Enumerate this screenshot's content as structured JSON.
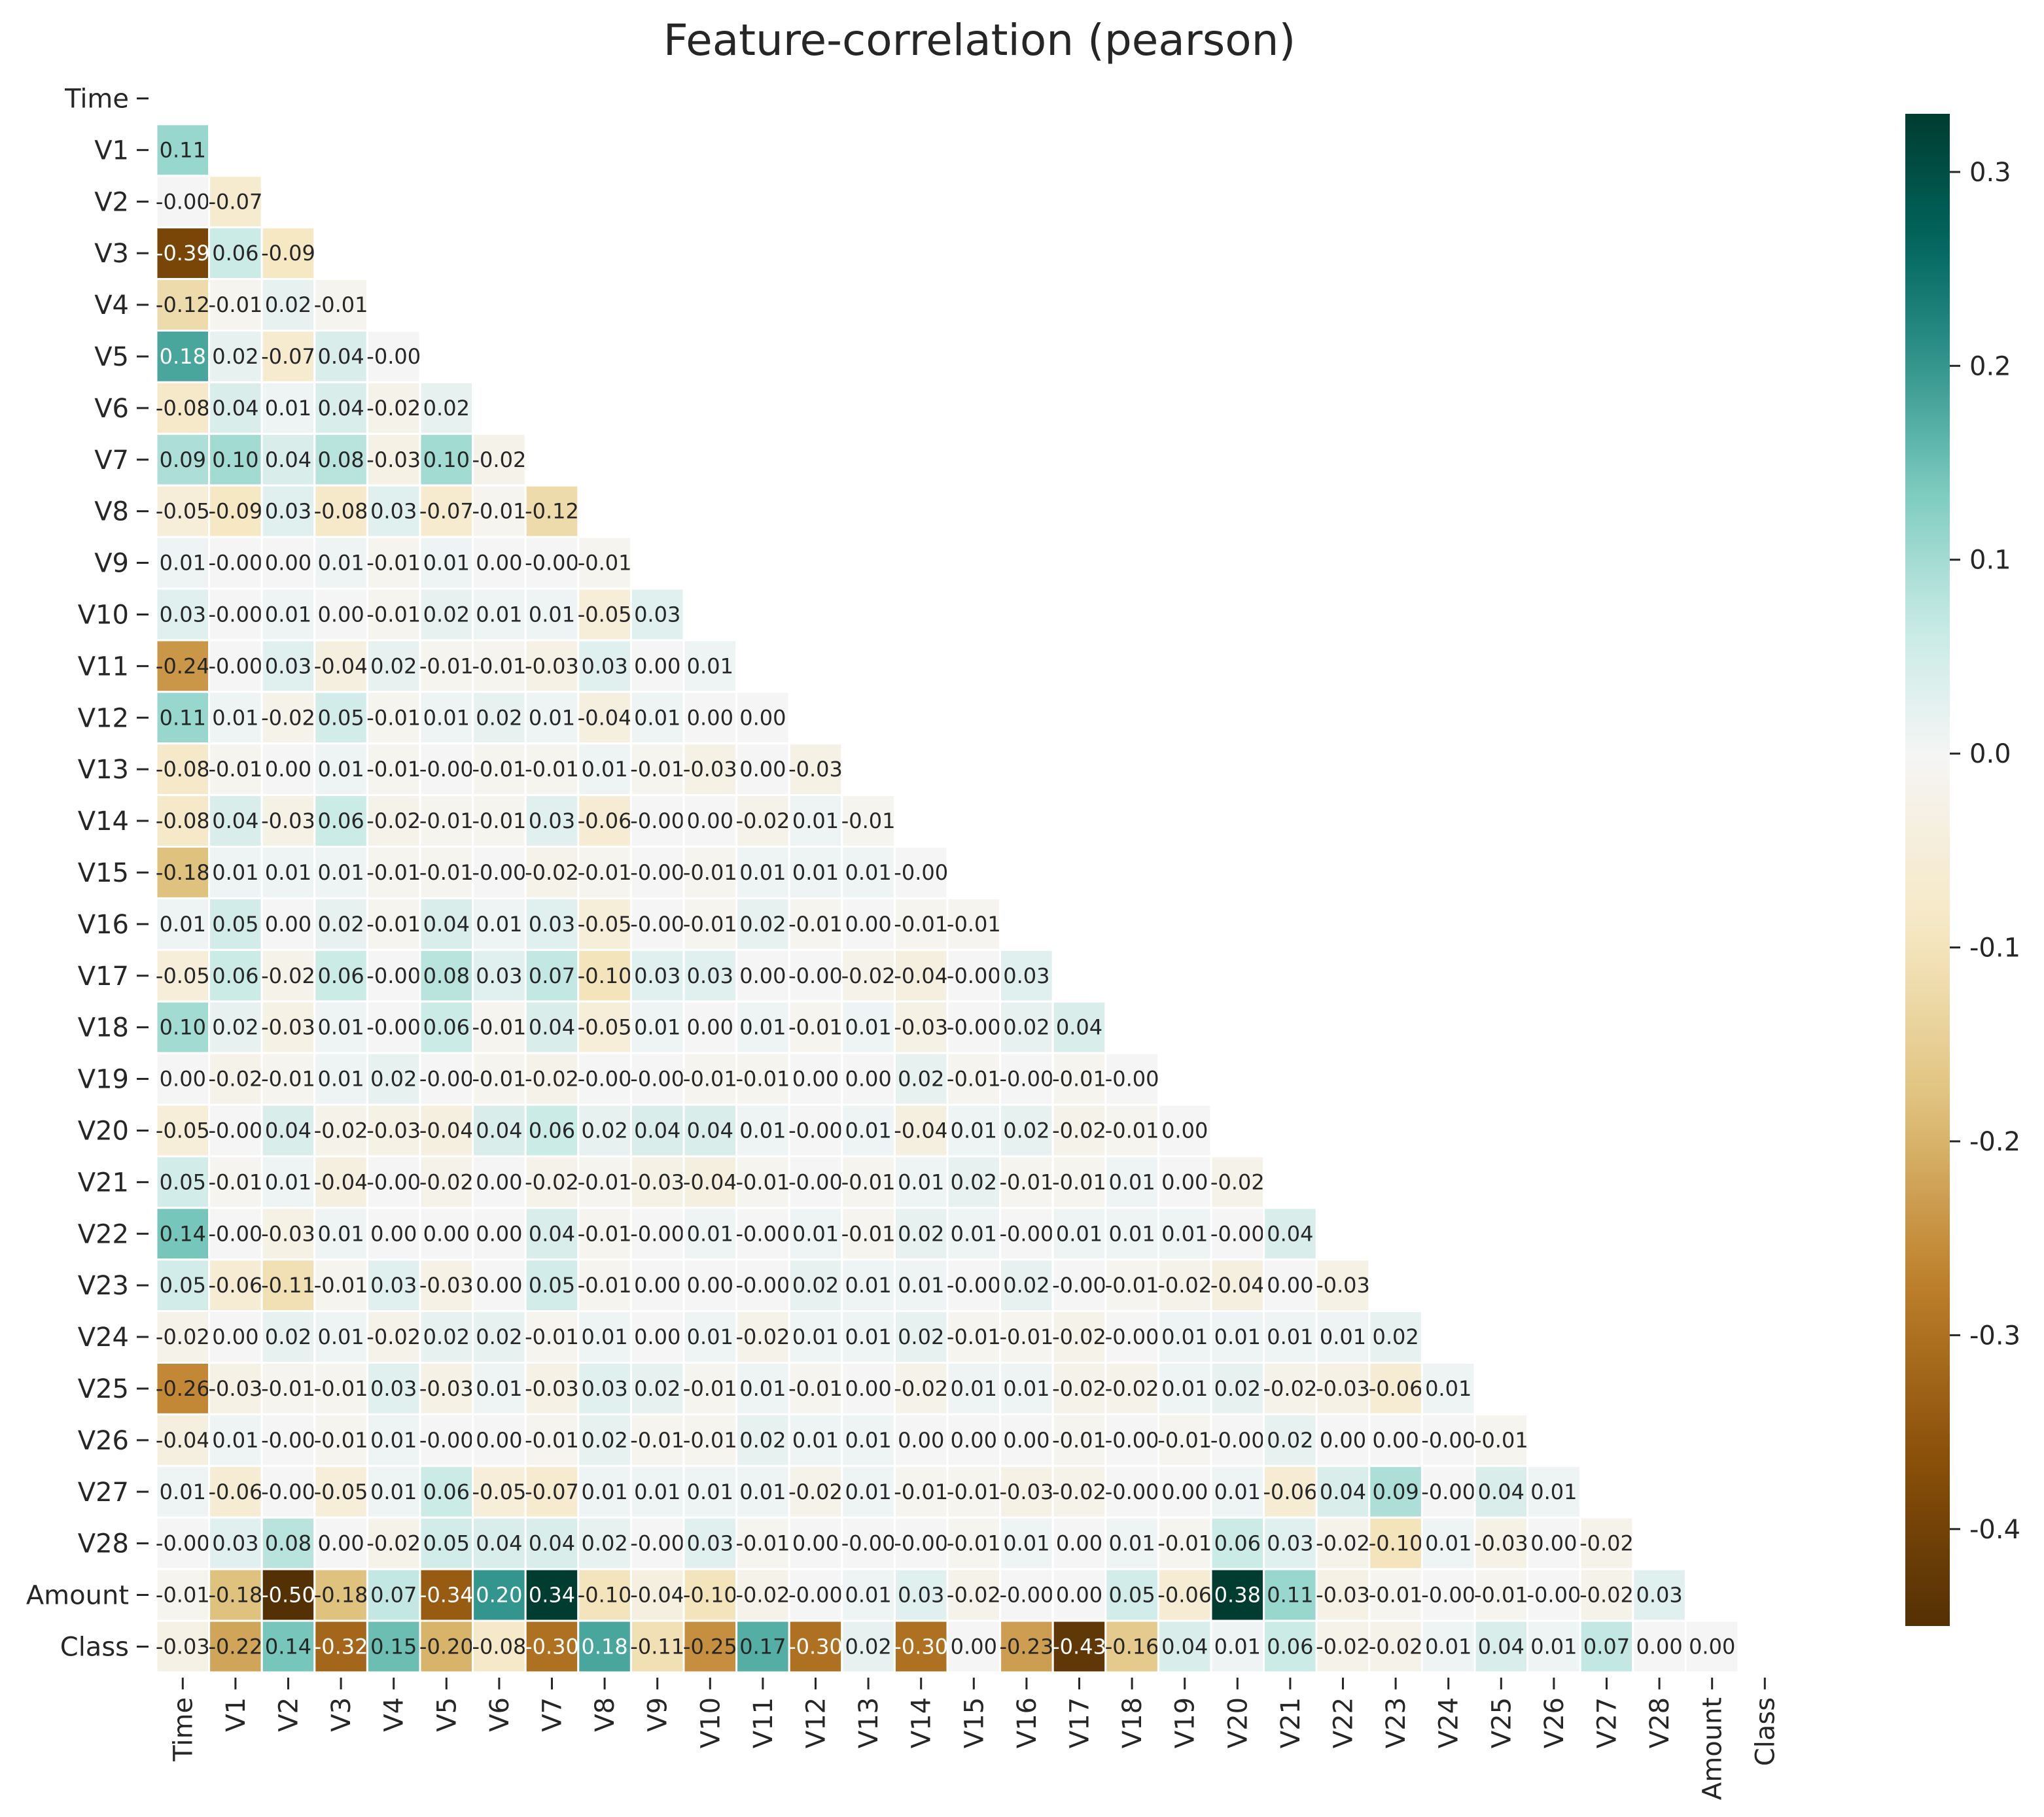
{
  "chart_data": {
    "type": "heatmap",
    "title": "Feature-correlation (pearson)",
    "mask": "upper-triangle-including-diagonal",
    "labels": [
      "Time",
      "V1",
      "V2",
      "V3",
      "V4",
      "V5",
      "V6",
      "V7",
      "V8",
      "V9",
      "V10",
      "V11",
      "V12",
      "V13",
      "V14",
      "V15",
      "V16",
      "V17",
      "V18",
      "V19",
      "V20",
      "V21",
      "V22",
      "V23",
      "V24",
      "V25",
      "V26",
      "V27",
      "V28",
      "Amount",
      "Class"
    ],
    "rows": [
      [],
      [
        0.11
      ],
      [
        -0.0,
        -0.07
      ],
      [
        -0.39,
        0.06,
        -0.09
      ],
      [
        -0.12,
        -0.01,
        0.02,
        -0.01
      ],
      [
        0.18,
        0.02,
        -0.07,
        0.04,
        -0.0
      ],
      [
        -0.08,
        0.04,
        0.01,
        0.04,
        -0.02,
        0.02
      ],
      [
        0.09,
        0.1,
        0.04,
        0.08,
        -0.03,
        0.1,
        -0.02
      ],
      [
        -0.05,
        -0.09,
        0.03,
        -0.08,
        0.03,
        -0.07,
        -0.01,
        -0.12
      ],
      [
        0.01,
        -0.0,
        0.0,
        0.01,
        -0.01,
        0.01,
        0.0,
        -0.0,
        -0.01
      ],
      [
        0.03,
        -0.0,
        0.01,
        0.0,
        -0.01,
        0.02,
        0.01,
        0.01,
        -0.05,
        0.03
      ],
      [
        -0.24,
        -0.0,
        0.03,
        -0.04,
        0.02,
        -0.01,
        -0.01,
        -0.03,
        0.03,
        0.0,
        0.01
      ],
      [
        0.11,
        0.01,
        -0.02,
        0.05,
        -0.01,
        0.01,
        0.02,
        0.01,
        -0.04,
        0.01,
        0.0,
        0.0
      ],
      [
        -0.08,
        -0.01,
        0.0,
        0.01,
        -0.01,
        -0.0,
        -0.01,
        -0.01,
        0.01,
        -0.01,
        -0.03,
        0.0,
        -0.03
      ],
      [
        -0.08,
        0.04,
        -0.03,
        0.06,
        -0.02,
        -0.01,
        -0.01,
        0.03,
        -0.06,
        -0.0,
        0.0,
        -0.02,
        0.01,
        -0.01
      ],
      [
        -0.18,
        0.01,
        0.01,
        0.01,
        -0.01,
        -0.01,
        -0.0,
        -0.02,
        -0.01,
        -0.0,
        -0.01,
        0.01,
        0.01,
        0.01,
        -0.0
      ],
      [
        0.01,
        0.05,
        0.0,
        0.02,
        -0.01,
        0.04,
        0.01,
        0.03,
        -0.05,
        -0.0,
        -0.01,
        0.02,
        -0.01,
        0.0,
        -0.01,
        -0.01
      ],
      [
        -0.05,
        0.06,
        -0.02,
        0.06,
        -0.0,
        0.08,
        0.03,
        0.07,
        -0.1,
        0.03,
        0.03,
        0.0,
        -0.0,
        -0.02,
        -0.04,
        -0.0,
        0.03
      ],
      [
        0.1,
        0.02,
        -0.03,
        0.01,
        -0.0,
        0.06,
        -0.01,
        0.04,
        -0.05,
        0.01,
        0.0,
        0.01,
        -0.01,
        0.01,
        -0.03,
        -0.0,
        0.02,
        0.04
      ],
      [
        0.0,
        -0.02,
        -0.01,
        0.01,
        0.02,
        -0.0,
        -0.01,
        -0.02,
        -0.0,
        -0.0,
        -0.01,
        -0.01,
        0.0,
        0.0,
        0.02,
        -0.01,
        -0.0,
        -0.01,
        -0.0
      ],
      [
        -0.05,
        -0.0,
        0.04,
        -0.02,
        -0.03,
        -0.04,
        0.04,
        0.06,
        0.02,
        0.04,
        0.04,
        0.01,
        -0.0,
        0.01,
        -0.04,
        0.01,
        0.02,
        -0.02,
        -0.01,
        0.0
      ],
      [
        0.05,
        -0.01,
        0.01,
        -0.04,
        -0.0,
        -0.02,
        0.0,
        -0.02,
        -0.01,
        -0.03,
        -0.04,
        -0.01,
        -0.0,
        -0.01,
        0.01,
        0.02,
        -0.01,
        -0.01,
        0.01,
        0.0,
        -0.02
      ],
      [
        0.14,
        -0.0,
        -0.03,
        0.01,
        0.0,
        0.0,
        0.0,
        0.04,
        -0.01,
        -0.0,
        0.01,
        -0.0,
        0.01,
        -0.01,
        0.02,
        0.01,
        -0.0,
        0.01,
        0.01,
        0.01,
        -0.0,
        0.04
      ],
      [
        0.05,
        -0.06,
        -0.11,
        -0.01,
        0.03,
        -0.03,
        0.0,
        0.05,
        -0.01,
        0.0,
        0.0,
        -0.0,
        0.02,
        0.01,
        0.01,
        -0.0,
        0.02,
        -0.0,
        -0.01,
        -0.02,
        -0.04,
        0.0,
        -0.03
      ],
      [
        -0.02,
        0.0,
        0.02,
        0.01,
        -0.02,
        0.02,
        0.02,
        -0.01,
        0.01,
        0.0,
        0.01,
        -0.02,
        0.01,
        0.01,
        0.02,
        -0.01,
        -0.01,
        -0.02,
        -0.0,
        0.01,
        0.01,
        0.01,
        0.01,
        0.02
      ],
      [
        -0.26,
        -0.03,
        -0.01,
        -0.01,
        0.03,
        -0.03,
        0.01,
        -0.03,
        0.03,
        0.02,
        -0.01,
        0.01,
        -0.01,
        0.0,
        -0.02,
        0.01,
        0.01,
        -0.02,
        -0.02,
        0.01,
        0.02,
        -0.02,
        -0.03,
        -0.06,
        0.01
      ],
      [
        -0.04,
        0.01,
        -0.0,
        -0.01,
        0.01,
        -0.0,
        0.0,
        -0.01,
        0.02,
        -0.01,
        -0.01,
        0.02,
        0.01,
        0.01,
        0.0,
        0.0,
        0.0,
        -0.01,
        -0.0,
        -0.01,
        -0.0,
        0.02,
        0.0,
        0.0,
        -0.0,
        -0.01
      ],
      [
        0.01,
        -0.06,
        -0.0,
        -0.05,
        0.01,
        0.06,
        -0.05,
        -0.07,
        0.01,
        0.01,
        0.01,
        0.01,
        -0.02,
        0.01,
        -0.01,
        -0.01,
        -0.03,
        -0.02,
        -0.0,
        0.0,
        0.01,
        -0.06,
        0.04,
        0.09,
        -0.0,
        0.04,
        0.01
      ],
      [
        -0.0,
        0.03,
        0.08,
        0.0,
        -0.02,
        0.05,
        0.04,
        0.04,
        0.02,
        -0.0,
        0.03,
        -0.01,
        0.0,
        -0.0,
        -0.0,
        -0.01,
        0.01,
        0.0,
        0.01,
        -0.01,
        0.06,
        0.03,
        -0.02,
        -0.1,
        0.01,
        -0.03,
        0.0,
        -0.02
      ],
      [
        -0.01,
        -0.18,
        -0.5,
        -0.18,
        0.07,
        -0.34,
        0.2,
        0.34,
        -0.1,
        -0.04,
        -0.1,
        -0.02,
        -0.0,
        0.01,
        0.03,
        -0.02,
        -0.0,
        0.0,
        0.05,
        -0.06,
        0.38,
        0.11,
        -0.03,
        -0.01,
        -0.0,
        -0.01,
        -0.0,
        -0.02,
        0.03
      ],
      [
        -0.03,
        -0.22,
        0.14,
        -0.32,
        0.15,
        -0.2,
        -0.08,
        -0.3,
        0.18,
        -0.11,
        -0.25,
        0.17,
        -0.3,
        0.02,
        -0.3,
        0.0,
        -0.23,
        -0.43,
        -0.16,
        0.04,
        0.01,
        0.06,
        -0.02,
        -0.02,
        0.01,
        0.04,
        0.01,
        0.07,
        0.0,
        0.0
      ]
    ],
    "colorbar": {
      "colormap": "BrBG",
      "vmin": -0.45,
      "vmax": 0.33,
      "ticks": [
        0.3,
        0.2,
        0.1,
        0.0,
        -0.1,
        -0.2,
        -0.3,
        -0.4
      ],
      "tick_labels": [
        "0.3",
        "0.2",
        "0.1",
        "0.0",
        "-0.1",
        "-0.2",
        "-0.3",
        "-0.4"
      ]
    }
  }
}
